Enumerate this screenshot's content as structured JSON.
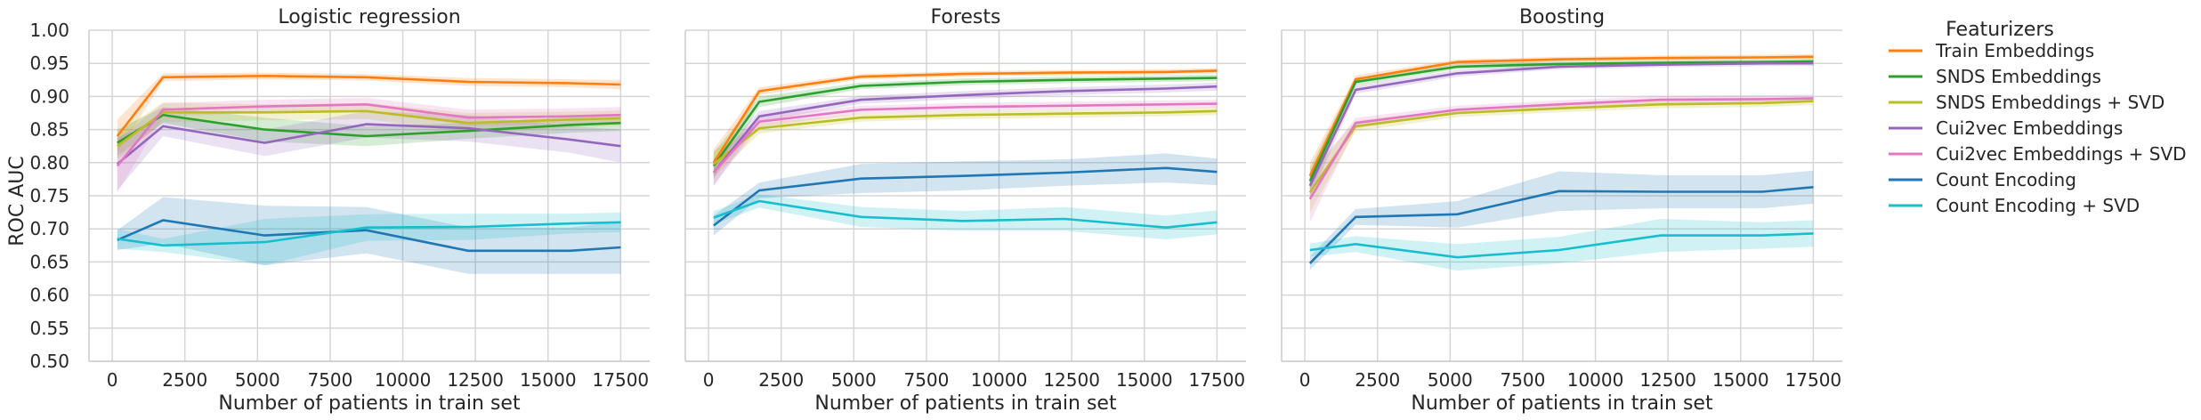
{
  "legend": {
    "title": "Featurizers",
    "placement": "right"
  },
  "chart_data": {
    "type": "line",
    "ylabel": "ROC AUC",
    "xlabel": "Number of patients in train set",
    "ylim": [
      0.5,
      1.0
    ],
    "xlim": [
      -800,
      18500
    ],
    "yticks": [
      "0.50",
      "0.55",
      "0.60",
      "0.65",
      "0.70",
      "0.75",
      "0.80",
      "0.85",
      "0.90",
      "0.95",
      "1.00"
    ],
    "xticks": [
      "0",
      "2500",
      "5000",
      "7500",
      "10000",
      "12500",
      "15000",
      "17500"
    ],
    "grid": true,
    "series_styles": [
      {
        "name": "Train Embeddings",
        "color": "#ff7f0e"
      },
      {
        "name": "SNDS Embeddings",
        "color": "#2ca02c"
      },
      {
        "name": "SNDS Embeddings + SVD",
        "color": "#bcbd22"
      },
      {
        "name": "Cui2vec Embeddings",
        "color": "#9467bd"
      },
      {
        "name": "Cui2vec Embeddings + SVD",
        "color": "#e377c2"
      },
      {
        "name": "Count Encoding",
        "color": "#1f77b4"
      },
      {
        "name": "Count Encoding + SVD",
        "color": "#17becf"
      }
    ],
    "x": [
      175,
      1750,
      5250,
      8750,
      12250,
      15750,
      17500
    ],
    "panels": [
      {
        "title": "Logistic regression",
        "series": [
          {
            "name": "Train Embeddings",
            "values": [
              0.84,
              0.929,
              0.931,
              0.929,
              0.922,
              0.92,
              0.918
            ],
            "band": [
              0.025,
              0.006,
              0.005,
              0.005,
              0.006,
              0.006,
              0.007
            ]
          },
          {
            "name": "SNDS Embeddings",
            "values": [
              0.83,
              0.872,
              0.85,
              0.84,
              0.848,
              0.857,
              0.86
            ],
            "band": [
              0.02,
              0.012,
              0.018,
              0.015,
              0.012,
              0.012,
              0.012
            ]
          },
          {
            "name": "SNDS Embeddings + SVD",
            "values": [
              0.825,
              0.876,
              0.876,
              0.878,
              0.86,
              0.865,
              0.867
            ],
            "band": [
              0.02,
              0.015,
              0.012,
              0.012,
              0.015,
              0.012,
              0.012
            ]
          },
          {
            "name": "Cui2vec Embeddings",
            "values": [
              0.798,
              0.855,
              0.83,
              0.858,
              0.852,
              0.835,
              0.825
            ],
            "band": [
              0.04,
              0.015,
              0.02,
              0.02,
              0.02,
              0.02,
              0.025
            ]
          },
          {
            "name": "Cui2vec Embeddings + SVD",
            "values": [
              0.795,
              0.88,
              0.885,
              0.888,
              0.868,
              0.87,
              0.872
            ],
            "band": [
              0.04,
              0.01,
              0.01,
              0.01,
              0.012,
              0.012,
              0.012
            ]
          },
          {
            "name": "Count Encoding",
            "values": [
              0.683,
              0.713,
              0.69,
              0.698,
              0.667,
              0.667,
              0.672
            ],
            "band": [
              0.015,
              0.035,
              0.045,
              0.035,
              0.035,
              0.035,
              0.04
            ]
          },
          {
            "name": "Count Encoding + SVD",
            "values": [
              0.685,
              0.675,
              0.68,
              0.702,
              0.703,
              0.708,
              0.71
            ],
            "band": [
              0.015,
              0.01,
              0.035,
              0.02,
              0.02,
              0.015,
              0.015
            ]
          }
        ]
      },
      {
        "title": "Forests",
        "series": [
          {
            "name": "Train Embeddings",
            "values": [
              0.8,
              0.908,
              0.93,
              0.934,
              0.936,
              0.937,
              0.939
            ],
            "band": [
              0.02,
              0.006,
              0.004,
              0.004,
              0.004,
              0.004,
              0.004
            ]
          },
          {
            "name": "SNDS Embeddings",
            "values": [
              0.795,
              0.892,
              0.916,
              0.922,
              0.925,
              0.927,
              0.928
            ],
            "band": [
              0.02,
              0.008,
              0.005,
              0.005,
              0.005,
              0.005,
              0.005
            ]
          },
          {
            "name": "SNDS Embeddings + SVD",
            "values": [
              0.798,
              0.852,
              0.868,
              0.872,
              0.874,
              0.876,
              0.878
            ],
            "band": [
              0.02,
              0.008,
              0.006,
              0.006,
              0.006,
              0.006,
              0.006
            ]
          },
          {
            "name": "Cui2vec Embeddings",
            "values": [
              0.785,
              0.87,
              0.895,
              0.902,
              0.908,
              0.912,
              0.915
            ],
            "band": [
              0.02,
              0.008,
              0.006,
              0.006,
              0.006,
              0.006,
              0.006
            ]
          },
          {
            "name": "Cui2vec Embeddings + SVD",
            "values": [
              0.785,
              0.862,
              0.88,
              0.884,
              0.886,
              0.888,
              0.889
            ],
            "band": [
              0.02,
              0.008,
              0.006,
              0.006,
              0.006,
              0.006,
              0.006
            ]
          },
          {
            "name": "Count Encoding",
            "values": [
              0.705,
              0.758,
              0.776,
              0.78,
              0.785,
              0.792,
              0.786
            ],
            "band": [
              0.015,
              0.012,
              0.022,
              0.022,
              0.02,
              0.022,
              0.02
            ]
          },
          {
            "name": "Count Encoding + SVD",
            "values": [
              0.717,
              0.742,
              0.718,
              0.712,
              0.715,
              0.702,
              0.71
            ],
            "band": [
              0.01,
              0.01,
              0.015,
              0.015,
              0.018,
              0.018,
              0.018
            ]
          }
        ]
      },
      {
        "title": "Boosting",
        "series": [
          {
            "name": "Train Embeddings",
            "values": [
              0.78,
              0.926,
              0.952,
              0.956,
              0.958,
              0.959,
              0.96
            ],
            "band": [
              0.02,
              0.006,
              0.004,
              0.004,
              0.004,
              0.004,
              0.004
            ]
          },
          {
            "name": "SNDS Embeddings",
            "values": [
              0.772,
              0.922,
              0.945,
              0.949,
              0.951,
              0.952,
              0.953
            ],
            "band": [
              0.02,
              0.006,
              0.004,
              0.004,
              0.004,
              0.004,
              0.004
            ]
          },
          {
            "name": "SNDS Embeddings + SVD",
            "values": [
              0.755,
              0.855,
              0.875,
              0.882,
              0.888,
              0.89,
              0.893
            ],
            "band": [
              0.03,
              0.008,
              0.006,
              0.006,
              0.006,
              0.006,
              0.006
            ]
          },
          {
            "name": "Cui2vec Embeddings",
            "values": [
              0.765,
              0.91,
              0.935,
              0.945,
              0.948,
              0.95,
              0.95
            ],
            "band": [
              0.02,
              0.006,
              0.005,
              0.004,
              0.004,
              0.004,
              0.004
            ]
          },
          {
            "name": "Cui2vec Embeddings + SVD",
            "values": [
              0.745,
              0.86,
              0.88,
              0.888,
              0.895,
              0.896,
              0.897
            ],
            "band": [
              0.035,
              0.008,
              0.006,
              0.006,
              0.006,
              0.006,
              0.006
            ]
          },
          {
            "name": "Count Encoding",
            "values": [
              0.648,
              0.718,
              0.722,
              0.757,
              0.756,
              0.756,
              0.763
            ],
            "band": [
              0.01,
              0.012,
              0.02,
              0.03,
              0.025,
              0.025,
              0.025
            ]
          },
          {
            "name": "Count Encoding + SVD",
            "values": [
              0.668,
              0.677,
              0.657,
              0.668,
              0.69,
              0.69,
              0.693
            ],
            "band": [
              0.01,
              0.012,
              0.02,
              0.02,
              0.025,
              0.02,
              0.02
            ]
          }
        ]
      }
    ]
  }
}
